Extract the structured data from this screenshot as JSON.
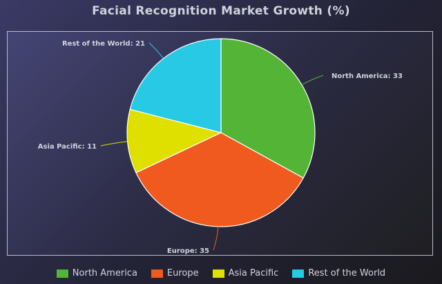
{
  "chart_data": {
    "type": "pie",
    "title": "Facial Recognition Market Growth (%)",
    "slices": [
      {
        "label": "North America",
        "value": 33,
        "color": "#54b435"
      },
      {
        "label": "Europe",
        "value": 35,
        "color": "#f05a1e"
      },
      {
        "label": "Asia Pacific",
        "value": 11,
        "color": "#dfe000"
      },
      {
        "label": "Rest of the World",
        "value": 21,
        "color": "#27c9e5"
      }
    ],
    "data_labels": [
      "North America: 33",
      "Europe: 35",
      "Asia Pacific: 11",
      "Rest of the World: 21"
    ],
    "legend_position": "bottom",
    "start_angle": "top, clockwise"
  }
}
